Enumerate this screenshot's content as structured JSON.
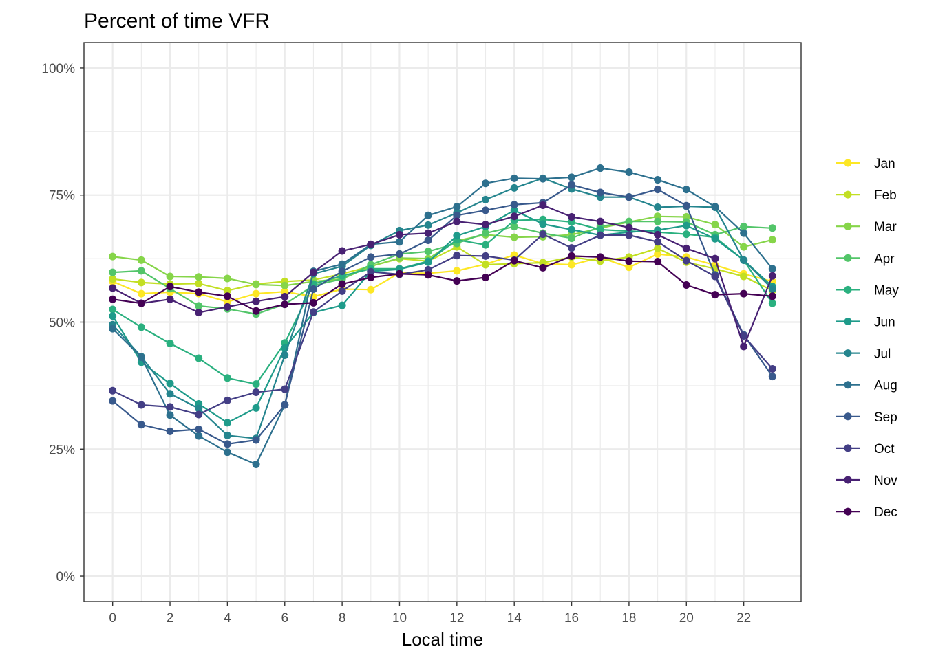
{
  "chart_data": {
    "type": "line",
    "title": "Percent of time VFR",
    "xlabel": "Local time",
    "ylabel": "",
    "x": [
      0,
      1,
      2,
      3,
      4,
      5,
      6,
      7,
      8,
      9,
      10,
      11,
      12,
      13,
      14,
      15,
      16,
      17,
      18,
      19,
      20,
      21,
      22,
      23
    ],
    "xlim": [
      -1,
      24
    ],
    "ylim": [
      -0.05,
      1.05
    ],
    "x_ticks": [
      0,
      2,
      4,
      6,
      8,
      10,
      12,
      14,
      16,
      18,
      20,
      22
    ],
    "x_tick_labels": [
      "0",
      "2",
      "4",
      "6",
      "8",
      "10",
      "12",
      "14",
      "16",
      "18",
      "20",
      "22"
    ],
    "y_ticks": [
      0,
      0.25,
      0.5,
      0.75,
      1.0
    ],
    "y_tick_labels": [
      "0%",
      "25%",
      "50%",
      "75%",
      "100%"
    ],
    "grid": true,
    "legend_position": "right",
    "series": [
      {
        "name": "Jan",
        "color": "#FDE725",
        "values": [
          0.58,
          0.556,
          0.559,
          0.556,
          0.54,
          0.556,
          0.56,
          0.55,
          0.565,
          0.564,
          0.597,
          0.596,
          0.601,
          0.614,
          0.632,
          0.615,
          0.613,
          0.627,
          0.608,
          0.634,
          0.628,
          0.612,
          0.595,
          0.58
        ]
      },
      {
        "name": "Feb",
        "color": "#C2DF23",
        "values": [
          0.585,
          0.578,
          0.575,
          0.576,
          0.562,
          0.575,
          0.58,
          0.583,
          0.595,
          0.61,
          0.625,
          0.62,
          0.648,
          0.613,
          0.615,
          0.617,
          0.628,
          0.62,
          0.628,
          0.645,
          0.618,
          0.605,
          0.59,
          0.562
        ]
      },
      {
        "name": "Mar",
        "color": "#86D549",
        "values": [
          0.629,
          0.622,
          0.59,
          0.589,
          0.586,
          0.574,
          0.572,
          0.58,
          0.585,
          0.61,
          0.626,
          0.625,
          0.66,
          0.672,
          0.667,
          0.668,
          0.672,
          0.685,
          0.697,
          0.708,
          0.707,
          0.692,
          0.648,
          0.662
        ]
      },
      {
        "name": "Apr",
        "color": "#52C569",
        "values": [
          0.598,
          0.601,
          0.566,
          0.532,
          0.526,
          0.516,
          0.535,
          0.572,
          0.585,
          0.613,
          0.634,
          0.639,
          0.655,
          0.675,
          0.688,
          0.675,
          0.665,
          0.688,
          0.698,
          0.698,
          0.697,
          0.672,
          0.688,
          0.685
        ]
      },
      {
        "name": "May",
        "color": "#2AB07F",
        "values": [
          0.525,
          0.49,
          0.458,
          0.429,
          0.39,
          0.378,
          0.459,
          0.575,
          0.591,
          0.605,
          0.605,
          0.62,
          0.662,
          0.652,
          0.7,
          0.702,
          0.697,
          0.682,
          0.679,
          0.677,
          0.673,
          0.667,
          0.622,
          0.537
        ]
      },
      {
        "name": "Jun",
        "color": "#1E9B8A",
        "values": [
          0.512,
          0.421,
          0.379,
          0.339,
          0.302,
          0.331,
          0.449,
          0.519,
          0.533,
          0.6,
          0.604,
          0.618,
          0.67,
          0.688,
          0.72,
          0.693,
          0.682,
          0.671,
          0.677,
          0.681,
          0.69,
          0.664,
          0.622,
          0.57
        ]
      },
      {
        "name": "Jul",
        "color": "#25858E",
        "values": [
          0.495,
          0.432,
          0.359,
          0.33,
          0.277,
          0.271,
          0.435,
          0.595,
          0.61,
          0.651,
          0.68,
          0.691,
          0.715,
          0.741,
          0.764,
          0.783,
          0.762,
          0.746,
          0.746,
          0.726,
          0.728,
          0.726,
          0.622,
          0.565
        ]
      },
      {
        "name": "Aug",
        "color": "#2D708E",
        "values": [
          0.487,
          0.431,
          0.317,
          0.276,
          0.244,
          0.22,
          0.337,
          0.6,
          0.614,
          0.653,
          0.658,
          0.71,
          0.727,
          0.773,
          0.783,
          0.782,
          0.785,
          0.803,
          0.795,
          0.78,
          0.761,
          0.727,
          0.675,
          0.605
        ]
      },
      {
        "name": "Sep",
        "color": "#38598C",
        "values": [
          0.345,
          0.298,
          0.285,
          0.289,
          0.26,
          0.268,
          0.337,
          0.565,
          0.6,
          0.628,
          0.634,
          0.661,
          0.71,
          0.72,
          0.731,
          0.735,
          0.77,
          0.755,
          0.746,
          0.761,
          0.729,
          0.593,
          0.475,
          0.393
        ]
      },
      {
        "name": "Oct",
        "color": "#433E85",
        "values": [
          0.365,
          0.337,
          0.333,
          0.318,
          0.346,
          0.362,
          0.368,
          0.52,
          0.561,
          0.599,
          0.594,
          0.603,
          0.631,
          0.63,
          0.622,
          0.673,
          0.646,
          0.671,
          0.671,
          0.658,
          0.621,
          0.59,
          0.473,
          0.408
        ]
      },
      {
        "name": "Nov",
        "color": "#482173",
        "values": [
          0.567,
          0.537,
          0.545,
          0.519,
          0.53,
          0.541,
          0.55,
          0.598,
          0.64,
          0.653,
          0.672,
          0.675,
          0.698,
          0.692,
          0.708,
          0.73,
          0.707,
          0.698,
          0.686,
          0.672,
          0.645,
          0.625,
          0.452,
          0.591
        ]
      },
      {
        "name": "Dec",
        "color": "#440154",
        "values": [
          0.545,
          0.537,
          0.57,
          0.559,
          0.551,
          0.522,
          0.535,
          0.538,
          0.575,
          0.588,
          0.595,
          0.593,
          0.581,
          0.588,
          0.621,
          0.607,
          0.63,
          0.628,
          0.62,
          0.619,
          0.573,
          0.554,
          0.556,
          0.551
        ]
      }
    ]
  }
}
